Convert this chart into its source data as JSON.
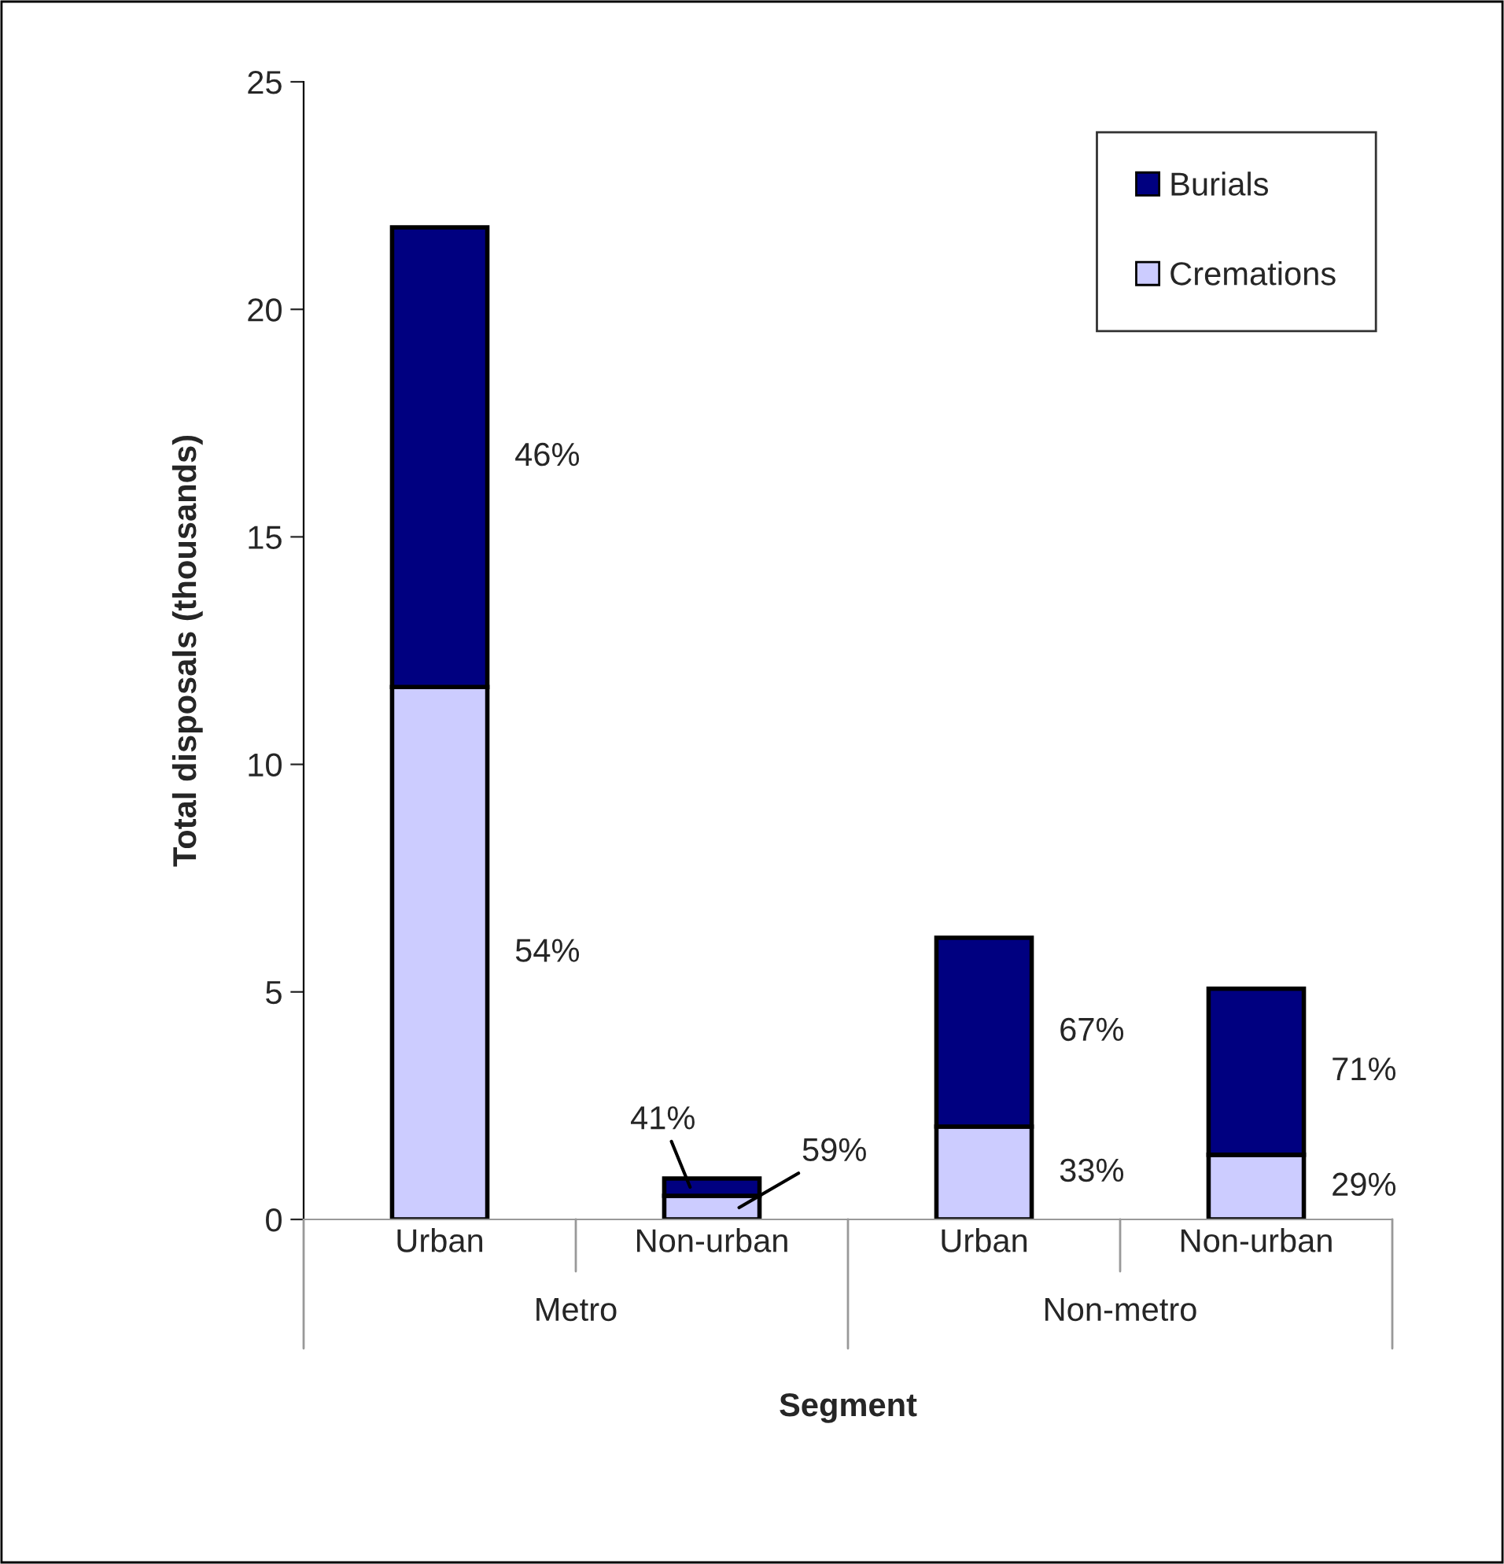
{
  "chart_data": {
    "type": "bar",
    "stacked": true,
    "xlabel": "Segment",
    "ylabel": "Total disposals (thousands)",
    "categories": [
      "Urban",
      "Non-urban",
      "Urban",
      "Non-urban"
    ],
    "series": [
      {
        "name": "Cremations",
        "color": "#ccccff",
        "values": [
          11.7,
          0.52,
          2.04,
          1.42
        ]
      },
      {
        "name": "Burials",
        "color": "#000080",
        "values": [
          10.1,
          0.38,
          4.15,
          3.65
        ]
      }
    ],
    "annotations": [
      "54%",
      "59%",
      "33%",
      "29%",
      "46%",
      "41%",
      "67%",
      "71%",
      "Metro",
      "Non-metro"
    ],
    "ylim": [
      0,
      25
    ],
    "yticks": [
      0,
      5,
      10,
      15,
      20,
      25
    ],
    "grid": false,
    "legend": "top right"
  }
}
